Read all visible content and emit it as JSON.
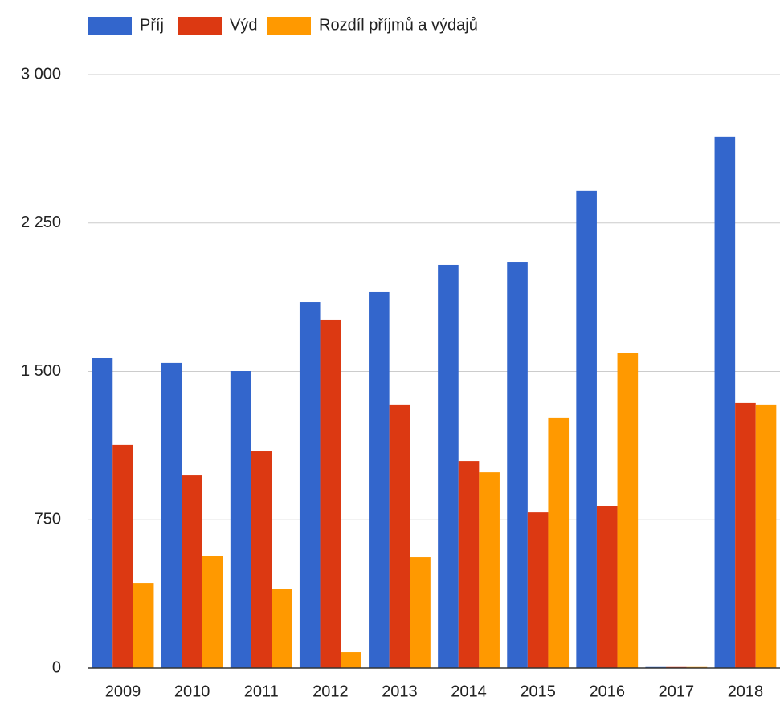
{
  "chart_data": {
    "type": "bar",
    "categories": [
      "2009",
      "2010",
      "2011",
      "2012",
      "2013",
      "2014",
      "2015",
      "2016",
      "2017",
      "2018"
    ],
    "series": [
      {
        "name": "Příj",
        "color": "#3366cc",
        "values": [
          1567,
          1543,
          1502,
          1851,
          1900,
          2038,
          2054,
          2412,
          5,
          2688
        ]
      },
      {
        "name": "Výd",
        "color": "#dc3912",
        "values": [
          1129,
          974,
          1096,
          1762,
          1332,
          1047,
          787,
          820,
          5,
          1340
        ]
      },
      {
        "name": "Rozdíl příjmů a výdajů",
        "color": "#ff9900",
        "values": [
          430,
          568,
          398,
          81,
          560,
          990,
          1267,
          1592,
          5,
          1332
        ]
      }
    ],
    "ylim": [
      0,
      3000
    ],
    "yticks": [
      0,
      750,
      {
        "value": 1500,
        "label": "1 500"
      },
      {
        "value": 2250,
        "label": "2 250"
      },
      {
        "value": 3000,
        "label": "3 000"
      }
    ],
    "grid": true,
    "legend": "top"
  }
}
